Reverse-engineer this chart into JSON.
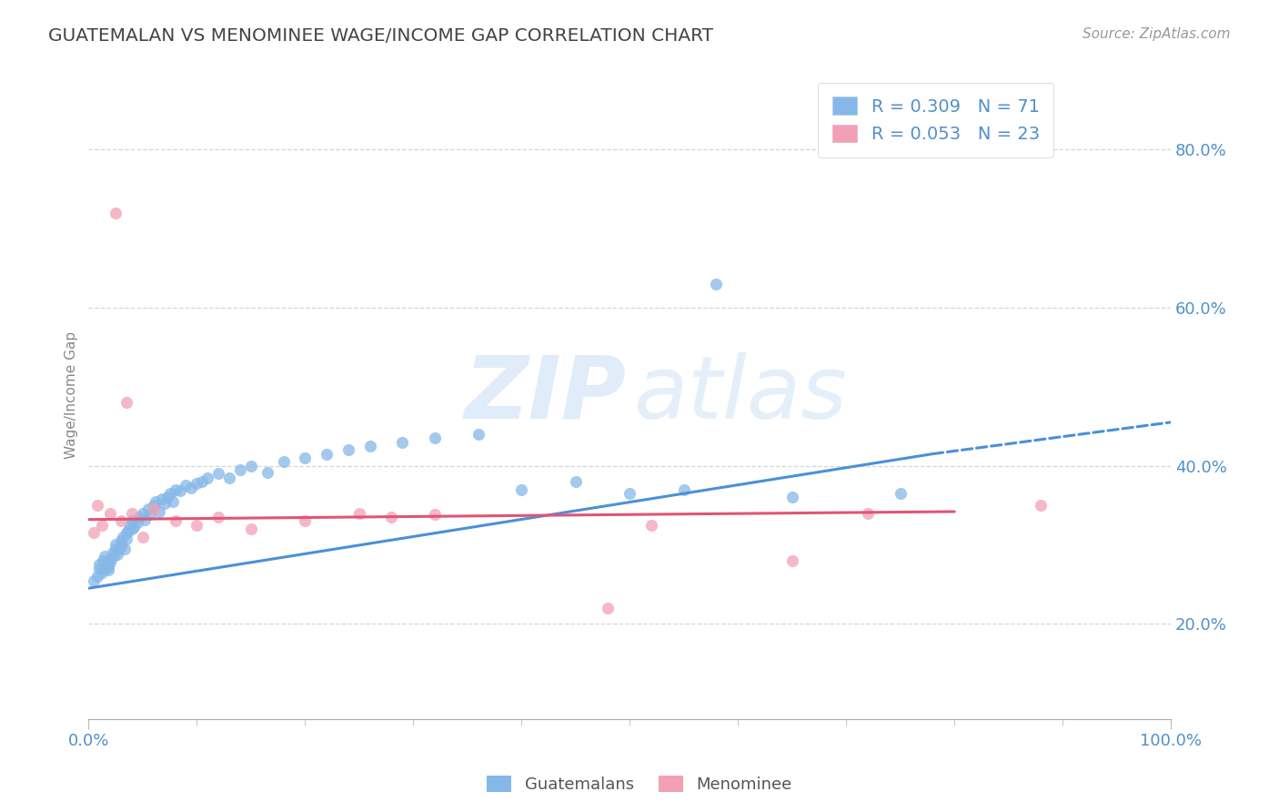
{
  "title": "GUATEMALAN VS MENOMINEE WAGE/INCOME GAP CORRELATION CHART",
  "source": "Source: ZipAtlas.com",
  "ylabel": "Wage/Income Gap",
  "blue_R": 0.309,
  "blue_N": 71,
  "pink_R": 0.053,
  "pink_N": 23,
  "legend_labels": [
    "Guatemalans",
    "Menominee"
  ],
  "blue_color": "#85b8e8",
  "pink_color": "#f2a0b5",
  "blue_line_color": "#4a90d9",
  "pink_line_color": "#e05575",
  "axis_tick_color": "#5090cc",
  "watermark_zip_color": "#c8ddf5",
  "watermark_atlas_color": "#c0d8f0",
  "background_color": "#ffffff",
  "grid_color": "#cccccc",
  "xlim": [
    0.0,
    1.0
  ],
  "ylim": [
    0.08,
    0.9
  ],
  "yticks": [
    0.2,
    0.4,
    0.6,
    0.8
  ],
  "ytick_labels": [
    "20.0%",
    "40.0%",
    "60.0%",
    "80.0%"
  ],
  "xtick_labels": [
    "0.0%",
    "100.0%"
  ],
  "blue_trend_x0": 0.0,
  "blue_trend_x1": 0.78,
  "blue_trend_x2": 1.0,
  "blue_trend_y0": 0.245,
  "blue_trend_y1": 0.415,
  "blue_trend_y2": 0.455,
  "pink_trend_x0": 0.0,
  "pink_trend_x1": 0.8,
  "pink_trend_y0": 0.332,
  "pink_trend_y1": 0.342,
  "blue_scatter_x": [
    0.005,
    0.008,
    0.01,
    0.01,
    0.012,
    0.013,
    0.015,
    0.015,
    0.017,
    0.018,
    0.018,
    0.02,
    0.02,
    0.022,
    0.023,
    0.025,
    0.025,
    0.027,
    0.028,
    0.03,
    0.03,
    0.032,
    0.033,
    0.035,
    0.035,
    0.037,
    0.038,
    0.04,
    0.04,
    0.042,
    0.045,
    0.047,
    0.05,
    0.052,
    0.055,
    0.057,
    0.06,
    0.062,
    0.065,
    0.068,
    0.07,
    0.073,
    0.075,
    0.078,
    0.08,
    0.085,
    0.09,
    0.095,
    0.1,
    0.105,
    0.11,
    0.12,
    0.13,
    0.14,
    0.15,
    0.165,
    0.18,
    0.2,
    0.22,
    0.24,
    0.26,
    0.29,
    0.32,
    0.36,
    0.4,
    0.45,
    0.5,
    0.55,
    0.58,
    0.65,
    0.75
  ],
  "blue_scatter_y": [
    0.255,
    0.26,
    0.27,
    0.275,
    0.265,
    0.28,
    0.285,
    0.27,
    0.275,
    0.268,
    0.272,
    0.278,
    0.282,
    0.29,
    0.285,
    0.295,
    0.3,
    0.288,
    0.295,
    0.298,
    0.305,
    0.31,
    0.295,
    0.308,
    0.315,
    0.318,
    0.325,
    0.32,
    0.33,
    0.322,
    0.328,
    0.335,
    0.34,
    0.332,
    0.345,
    0.338,
    0.35,
    0.355,
    0.342,
    0.358,
    0.352,
    0.36,
    0.365,
    0.355,
    0.37,
    0.368,
    0.375,
    0.372,
    0.378,
    0.38,
    0.385,
    0.39,
    0.385,
    0.395,
    0.4,
    0.392,
    0.405,
    0.41,
    0.415,
    0.42,
    0.425,
    0.43,
    0.435,
    0.44,
    0.37,
    0.38,
    0.365,
    0.37,
    0.63,
    0.36,
    0.365
  ],
  "pink_scatter_x": [
    0.005,
    0.008,
    0.012,
    0.02,
    0.025,
    0.03,
    0.035,
    0.04,
    0.05,
    0.06,
    0.08,
    0.1,
    0.12,
    0.15,
    0.2,
    0.25,
    0.28,
    0.32,
    0.48,
    0.52,
    0.65,
    0.72,
    0.88
  ],
  "pink_scatter_y": [
    0.315,
    0.35,
    0.325,
    0.34,
    0.72,
    0.33,
    0.48,
    0.34,
    0.31,
    0.345,
    0.33,
    0.325,
    0.335,
    0.32,
    0.33,
    0.34,
    0.335,
    0.338,
    0.22,
    0.325,
    0.28,
    0.34,
    0.35
  ]
}
